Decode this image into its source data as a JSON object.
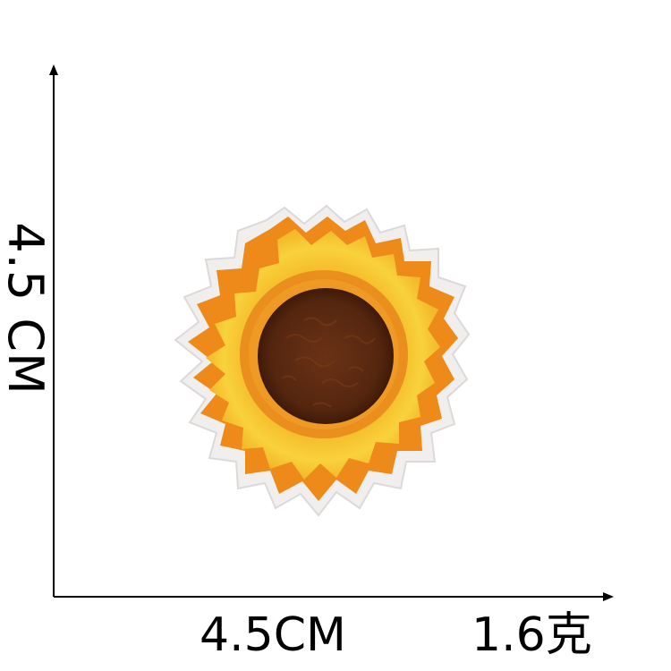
{
  "dimensions": {
    "height_label": "4.5 CM",
    "width_label": "4.5CM"
  },
  "weight": {
    "label": "1.6克"
  },
  "product": {
    "icon": "sunflower-patch-icon",
    "colors": {
      "petal_yellow": "#f6c623",
      "petal_orange": "#ee8a1a",
      "center_brown": "#5a2a12",
      "backing": "#f1efee"
    }
  }
}
